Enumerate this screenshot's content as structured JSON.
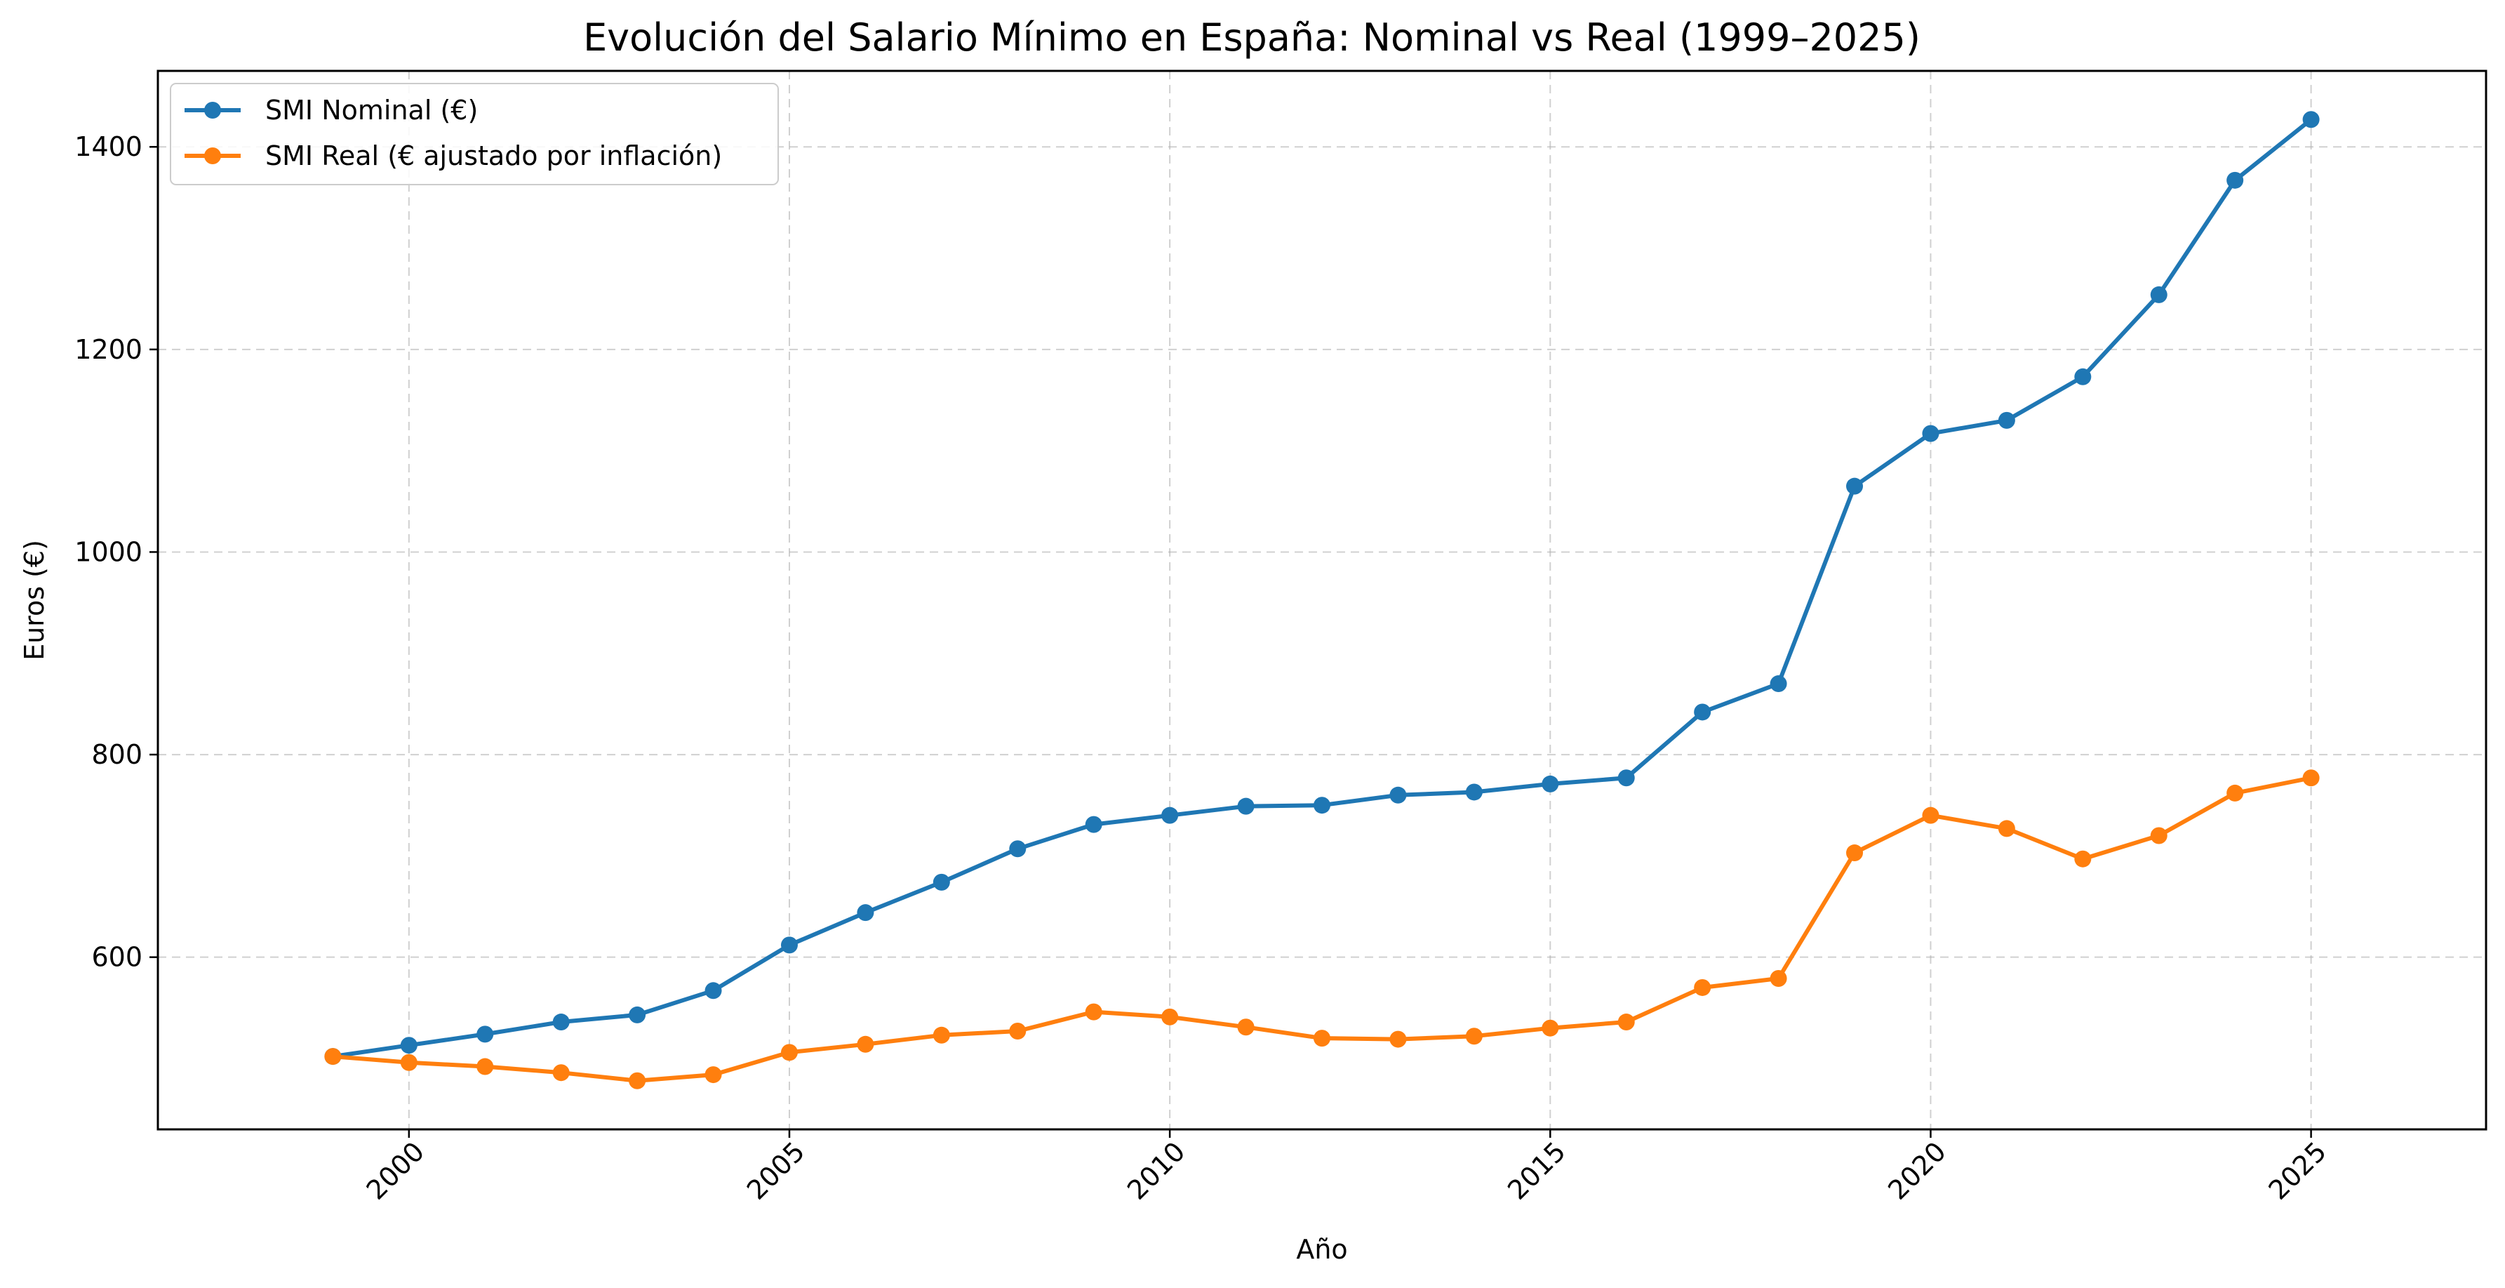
{
  "chart_data": {
    "type": "line",
    "title": "Evolución del Salario Mínimo en España: Nominal vs Real (1999–2025)",
    "xlabel": "Año",
    "ylabel": "Euros (€)",
    "xlim": [
      1996.7,
      2027.3
    ],
    "ylim": [
      430,
      1475
    ],
    "x_ticks": [
      2000,
      2005,
      2010,
      2015,
      2020,
      2025
    ],
    "y_ticks": [
      600,
      800,
      1000,
      1200,
      1400
    ],
    "grid": true,
    "legend_position": "upper-left",
    "x": [
      1999,
      2000,
      2001,
      2002,
      2003,
      2004,
      2005,
      2006,
      2007,
      2008,
      2009,
      2010,
      2011,
      2012,
      2013,
      2014,
      2015,
      2016,
      2017,
      2018,
      2019,
      2020,
      2021,
      2022,
      2023,
      2024,
      2025
    ],
    "series": [
      {
        "name": "SMI Nominal (€)",
        "color": "#1f77b4",
        "values": [
          502,
          513,
          524,
          536,
          543,
          567,
          612,
          644,
          674,
          707,
          731,
          740,
          749,
          750,
          760,
          763,
          771,
          777,
          842,
          870,
          1065,
          1117,
          1130,
          1173,
          1254,
          1367,
          1427
        ]
      },
      {
        "name": "SMI Real (€ ajustado por inflación)",
        "color": "#ff7f0e",
        "values": [
          502,
          496,
          492,
          486,
          478,
          484,
          506,
          514,
          523,
          527,
          546,
          541,
          531,
          520,
          519,
          522,
          530,
          536,
          570,
          579,
          703,
          740,
          727,
          697,
          720,
          762,
          777
        ]
      }
    ]
  }
}
